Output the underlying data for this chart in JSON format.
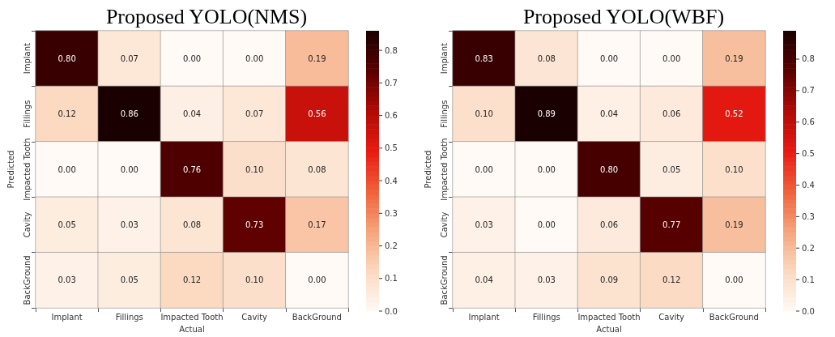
{
  "chart_data": [
    {
      "type": "heatmap",
      "title": "Proposed YOLO(NMS)",
      "xlabel": "Actual",
      "ylabel": "Predicted",
      "categories": [
        "Implant",
        "Fillings",
        "Impacted Tooth",
        "Cavity",
        "BackGround"
      ],
      "y_categories": [
        "Implant",
        "Fillings",
        "Impacted Tooth",
        "Cavity",
        "BackGround"
      ],
      "cells": [
        [
          0.8,
          0.07,
          0.0,
          0.0,
          0.19
        ],
        [
          0.12,
          0.86,
          0.04,
          0.07,
          0.56
        ],
        [
          0.0,
          0.0,
          0.76,
          0.1,
          0.08
        ],
        [
          0.05,
          0.03,
          0.08,
          0.73,
          0.17
        ],
        [
          0.03,
          0.05,
          0.12,
          0.1,
          0.0
        ]
      ],
      "cell_labels": [
        [
          "0.80",
          "0.07",
          "0.00",
          "0.00",
          "0.19"
        ],
        [
          "0.12",
          "0.86",
          "0.04",
          "0.07",
          "0.56"
        ],
        [
          "0.00",
          "0.00",
          "0.76",
          "0.10",
          "0.08"
        ],
        [
          "0.05",
          "0.03",
          "0.08",
          "0.73",
          "0.17"
        ],
        [
          "0.03",
          "0.05",
          "0.12",
          "0.10",
          "0.00"
        ]
      ],
      "clim": [
        0,
        0.86
      ],
      "cticks": [
        {
          "value": 0,
          "label": "0.0"
        },
        {
          "value": 0.1,
          "label": "0.1"
        },
        {
          "value": 0.2,
          "label": "0.2"
        },
        {
          "value": 0.3,
          "label": "0.3"
        },
        {
          "value": 0.4,
          "label": "0.4"
        },
        {
          "value": 0.5,
          "label": "0.5"
        },
        {
          "value": 0.6,
          "label": "0.6"
        },
        {
          "value": 0.7,
          "label": "0.7"
        },
        {
          "value": 0.8,
          "label": "0.8"
        }
      ]
    },
    {
      "type": "heatmap",
      "title": "Proposed YOLO(WBF)",
      "xlabel": "Actual",
      "ylabel": "Predicted",
      "categories": [
        "Implant",
        "Fillings",
        "Impacted Tooth",
        "Cavity",
        "BackGround"
      ],
      "y_categories": [
        "Implant",
        "Fillings",
        "Impacted Tooth",
        "Cavity",
        "BackGround"
      ],
      "cells": [
        [
          0.83,
          0.08,
          0.0,
          0.0,
          0.19
        ],
        [
          0.1,
          0.89,
          0.04,
          0.06,
          0.52
        ],
        [
          0.0,
          0.0,
          0.8,
          0.05,
          0.1
        ],
        [
          0.03,
          0.0,
          0.06,
          0.77,
          0.19
        ],
        [
          0.04,
          0.03,
          0.09,
          0.12,
          0.0
        ]
      ],
      "cell_labels": [
        [
          "0.83",
          "0.08",
          "0.00",
          "0.00",
          "0.19"
        ],
        [
          "0.10",
          "0.89",
          "0.04",
          "0.06",
          "0.52"
        ],
        [
          "0.00",
          "0.00",
          "0.80",
          "0.05",
          "0.10"
        ],
        [
          "0.03",
          "0.00",
          "0.06",
          "0.77",
          "0.19"
        ],
        [
          "0.04",
          "0.03",
          "0.09",
          "0.12",
          "0.00"
        ]
      ],
      "clim": [
        0,
        0.89
      ],
      "cticks": [
        {
          "value": 0,
          "label": "0.0"
        },
        {
          "value": 0.1,
          "label": "0.1"
        },
        {
          "value": 0.2,
          "label": "0.2"
        },
        {
          "value": 0.3,
          "label": "0.3"
        },
        {
          "value": 0.4,
          "label": "0.4"
        },
        {
          "value": 0.5,
          "label": "0.5"
        },
        {
          "value": 0.6,
          "label": "0.6"
        },
        {
          "value": 0.7,
          "label": "0.7"
        },
        {
          "value": 0.8,
          "label": "0.8"
        }
      ]
    }
  ]
}
